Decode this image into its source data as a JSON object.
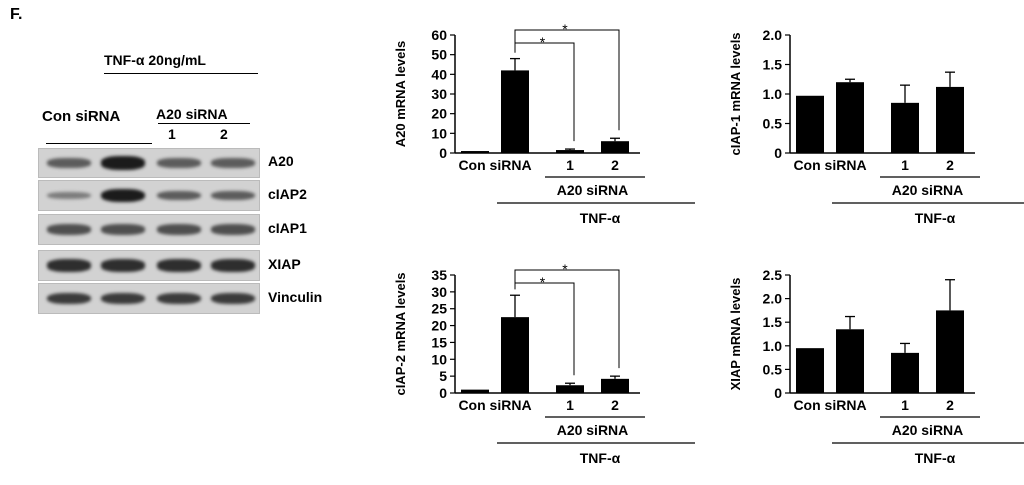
{
  "panel_label": "F.",
  "blot": {
    "condition": "TNF-α 20ng/mL",
    "control_group": "Con siRNA",
    "knockdown_group": "A20 siRNA",
    "lanes": [
      "1",
      "2"
    ],
    "rows": [
      {
        "label": "A20",
        "intensities": [
          0.45,
          0.95,
          0.45,
          0.45
        ]
      },
      {
        "label": "cIAP2",
        "intensities": [
          0.2,
          0.95,
          0.45,
          0.45
        ]
      },
      {
        "label": "cIAP1",
        "intensities": [
          0.55,
          0.55,
          0.55,
          0.55
        ]
      },
      {
        "label": "XIAP",
        "intensities": [
          0.8,
          0.8,
          0.8,
          0.8
        ]
      },
      {
        "label": "Vinculin",
        "intensities": [
          0.7,
          0.7,
          0.7,
          0.7
        ]
      }
    ]
  },
  "chart_data": [
    {
      "type": "bar",
      "ylabel": "A20 mRNA levels",
      "ylim": [
        0,
        60
      ],
      "yticks": [
        "0",
        "10",
        "20",
        "30",
        "40",
        "50",
        "60"
      ],
      "values": [
        1.0,
        42,
        1.5,
        6
      ],
      "errors": [
        0,
        6,
        0.5,
        1.5
      ],
      "group_label": "Con siRNA",
      "subgroup_label": "A20 siRNA",
      "subgroup_ticks": [
        "1",
        "2"
      ],
      "treatment_label": "TNF-α",
      "significance": [
        "*",
        "*"
      ]
    },
    {
      "type": "bar",
      "ylabel": "cIAP-1 mRNA levels",
      "ylim": [
        0,
        2.0
      ],
      "yticks": [
        "0",
        "0.5",
        "1.0",
        "1.5",
        "2.0"
      ],
      "values": [
        0.97,
        1.2,
        0.85,
        1.12
      ],
      "errors": [
        0,
        0.05,
        0.3,
        0.25
      ],
      "group_label": "Con siRNA",
      "subgroup_label": "A20 siRNA",
      "subgroup_ticks": [
        "1",
        "2"
      ],
      "treatment_label": "TNF-α",
      "significance": []
    },
    {
      "type": "bar",
      "ylabel": "cIAP-2 mRNA levels",
      "ylim": [
        0,
        35
      ],
      "yticks": [
        "0",
        "5",
        "10",
        "15",
        "20",
        "25",
        "30",
        "35"
      ],
      "values": [
        1.0,
        22.5,
        2.3,
        4.2
      ],
      "errors": [
        0,
        6.5,
        0.6,
        0.8
      ],
      "group_label": "Con siRNA",
      "subgroup_label": "A20 siRNA",
      "subgroup_ticks": [
        "1",
        "2"
      ],
      "treatment_label": "TNF-α",
      "significance": [
        "*",
        "*"
      ]
    },
    {
      "type": "bar",
      "ylabel": "XIAP mRNA levels",
      "ylim": [
        0,
        2.5
      ],
      "yticks": [
        "0",
        "0.5",
        "1.0",
        "1.5",
        "2.0",
        "2.5"
      ],
      "values": [
        0.95,
        1.35,
        0.85,
        1.75
      ],
      "errors": [
        0,
        0.27,
        0.2,
        0.65
      ],
      "group_label": "Con siRNA",
      "subgroup_label": "A20 siRNA",
      "subgroup_ticks": [
        "1",
        "2"
      ],
      "treatment_label": "TNF-α",
      "significance": []
    }
  ]
}
